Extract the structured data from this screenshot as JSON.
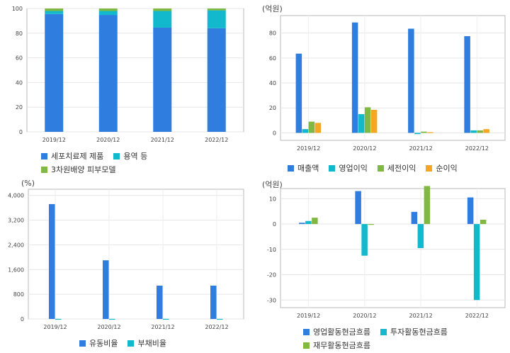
{
  "colors": {
    "blue": "#2f7ddf",
    "cyan": "#12b9cc",
    "green": "#80b841",
    "orange": "#f5a623"
  },
  "chart_data": [
    {
      "type": "bar",
      "stacked": true,
      "unit": "",
      "categories": [
        "2019/12",
        "2020/12",
        "2021/12",
        "2022/12"
      ],
      "series": [
        {
          "name": "세포치료제 제품",
          "values": [
            95.5,
            94.8,
            84.5,
            84.0
          ]
        },
        {
          "name": "용역 등",
          "values": [
            2.5,
            3.2,
            13.5,
            14.5
          ]
        },
        {
          "name": "3차원배양 피부모델",
          "values": [
            2.0,
            2.0,
            2.0,
            1.5
          ]
        }
      ],
      "ylim": [
        0,
        100
      ],
      "yticks": [
        0,
        20,
        40,
        60,
        80,
        100
      ],
      "yticklabels": [
        "0",
        "20",
        "40",
        "60",
        "80",
        "100"
      ],
      "grid": true,
      "legend_rows": [
        [
          "세포치료제 제품",
          "용역 등"
        ],
        [
          "3차원배양 피부모델"
        ]
      ]
    },
    {
      "type": "bar",
      "unit": "(억원)",
      "categories": [
        "2019/12",
        "2020/12",
        "2021/12",
        "2022/12"
      ],
      "series": [
        {
          "name": "매출액",
          "values": [
            63.5,
            88.5,
            83.5,
            77.5
          ]
        },
        {
          "name": "영업이익",
          "values": [
            3.0,
            15.0,
            -1.0,
            2.0
          ]
        },
        {
          "name": "세전이익",
          "values": [
            9.0,
            20.5,
            1.0,
            2.0
          ]
        },
        {
          "name": "순이익",
          "values": [
            8.0,
            18.5,
            0.5,
            3.0
          ]
        }
      ],
      "ylim": [
        -6,
        94
      ],
      "yticks": [
        0,
        20,
        40,
        60,
        80
      ],
      "yticklabels": [
        "0",
        "20",
        "40",
        "60",
        "80"
      ],
      "grid": true,
      "legend_rows": [
        [
          "매출액",
          "영업이익",
          "세전이익",
          "순이익"
        ]
      ]
    },
    {
      "type": "bar",
      "unit": "(%)",
      "categories": [
        "2019/12",
        "2020/12",
        "2021/12",
        "2022/12"
      ],
      "series": [
        {
          "name": "유동비율",
          "values": [
            3720,
            1900,
            1080,
            1080
          ]
        },
        {
          "name": "부채비율",
          "values": [
            3,
            3,
            4,
            3
          ]
        }
      ],
      "ylim": [
        0,
        4200
      ],
      "yticks": [
        0,
        800,
        1600,
        2400,
        3200,
        4000
      ],
      "yticklabels": [
        "0",
        "800",
        "1,600",
        "2,400",
        "3,200",
        "4,000"
      ],
      "grid": true,
      "legend_rows": [
        [
          "유동비율",
          "부채비율"
        ]
      ]
    },
    {
      "type": "bar",
      "unit": "(억원)",
      "categories": [
        "2019/12",
        "2020/12",
        "2021/12",
        "2022/12"
      ],
      "series": [
        {
          "name": "영업활동현금흐름",
          "values": [
            0.5,
            13.0,
            4.8,
            10.5
          ]
        },
        {
          "name": "투자활동현금흐름",
          "values": [
            1.2,
            -12.5,
            -9.5,
            -30.0
          ]
        },
        {
          "name": "재무활동현금흐름",
          "values": [
            2.5,
            -0.2,
            15.0,
            1.7
          ]
        }
      ],
      "ylim": [
        -33,
        14
      ],
      "yticks": [
        -30,
        -20,
        -10,
        0,
        10
      ],
      "yticklabels": [
        "-30",
        "-20",
        "-10",
        "0",
        "10"
      ],
      "grid": true,
      "legend_rows": [
        [
          "영업활동현금흐름",
          "투자활동현금흐름"
        ],
        [
          "재무활동현금흐름"
        ]
      ]
    }
  ]
}
